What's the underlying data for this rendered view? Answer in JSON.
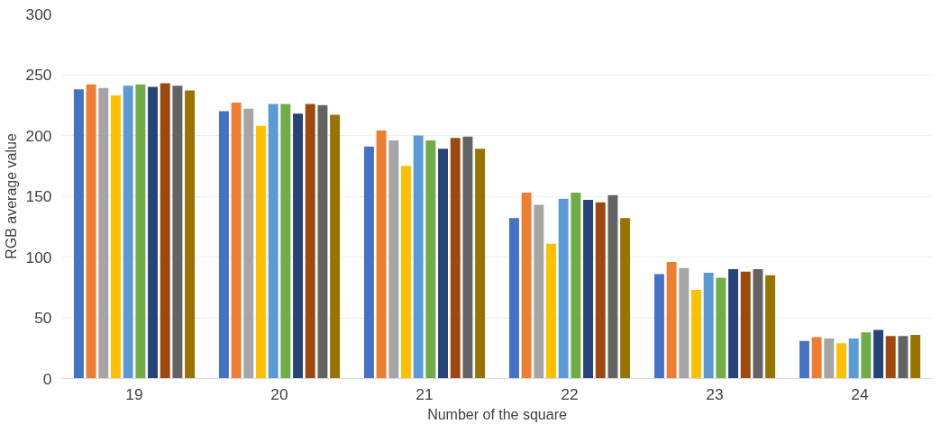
{
  "chart_data": {
    "type": "bar",
    "xlabel": "Number of the square",
    "ylabel": "RGB average value",
    "categories": [
      "19",
      "20",
      "21",
      "22",
      "23",
      "24"
    ],
    "series": [
      {
        "color": "#4472c4",
        "values": [
          238,
          220,
          191,
          132,
          86,
          31
        ]
      },
      {
        "color": "#ed7d31",
        "values": [
          242,
          227,
          204,
          153,
          96,
          34
        ]
      },
      {
        "color": "#a5a5a5",
        "values": [
          239,
          222,
          196,
          143,
          91,
          33
        ]
      },
      {
        "color": "#ffc000",
        "values": [
          233,
          208,
          175,
          111,
          73,
          29
        ]
      },
      {
        "color": "#5b9bd5",
        "values": [
          241,
          226,
          200,
          148,
          87,
          33
        ]
      },
      {
        "color": "#70ad47",
        "values": [
          242,
          226,
          196,
          153,
          83,
          38
        ]
      },
      {
        "color": "#264478",
        "values": [
          240,
          218,
          189,
          147,
          90,
          40
        ]
      },
      {
        "color": "#9e480e",
        "values": [
          243,
          226,
          198,
          145,
          88,
          35
        ]
      },
      {
        "color": "#636363",
        "values": [
          241,
          225,
          199,
          151,
          90,
          35
        ]
      },
      {
        "color": "#997300",
        "values": [
          237,
          217,
          189,
          132,
          85,
          36
        ]
      }
    ],
    "ylim": [
      0,
      300
    ],
    "yticks": [
      0,
      50,
      100,
      150,
      200,
      250,
      300
    ],
    "grid": "y"
  }
}
